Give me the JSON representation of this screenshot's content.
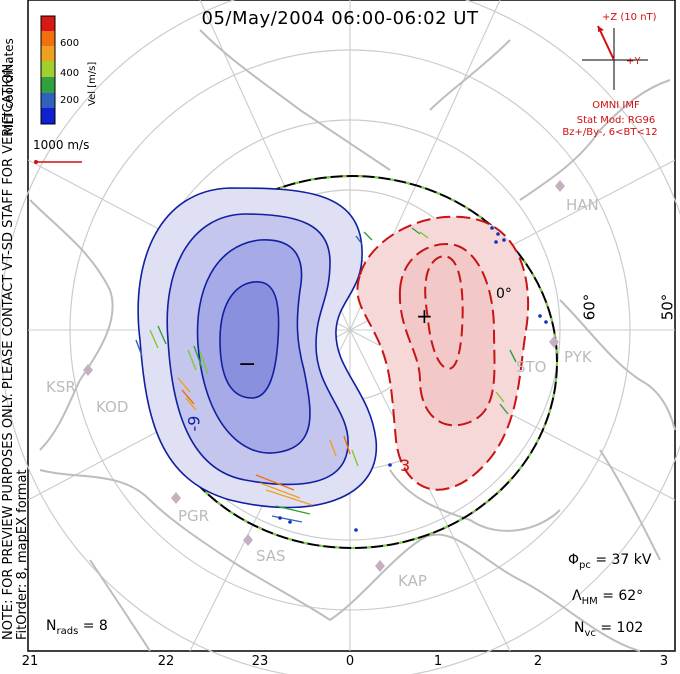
{
  "title": "05/May/2004 06:00-06:02 UT",
  "side_note_1": "NOTE: FOR PREVIEW PURPOSES ONLY. PLEASE CONTACT VT-SD STAFF FOR VERIFICATION.",
  "side_note_2": "FitOrder: 8, mapEX format",
  "coords_label": "MLT coordinates",
  "colorbar": {
    "label": "Vel [m/s]",
    "ticks": [
      "600",
      "400",
      "200"
    ],
    "colors": [
      "#d81818",
      "#f07010",
      "#f0a020",
      "#a0d030",
      "#30a040",
      "#3060c0",
      "#1020d0"
    ]
  },
  "velocity_scale": {
    "label": "1000 m/s",
    "color": "#d01010"
  },
  "imf": {
    "z_label": "+Z (10 nT)",
    "y_label": "+Y",
    "source": "OMNI IMF",
    "model": "Stat Mod: RG96",
    "condition": "Bz+/By-, 6<BT<12",
    "color": "#d01010"
  },
  "lat_labels": [
    "0°",
    "60°",
    "50°"
  ],
  "stations": [
    "HAN",
    "KSR",
    "KOD",
    "PGR",
    "SAS",
    "KAP",
    "STO",
    "PYK"
  ],
  "contour_labels": {
    "neg": "-9",
    "pos": "3"
  },
  "cell_markers": {
    "min": "−",
    "max": "+"
  },
  "stats": {
    "phi_pc": "= 37 kV",
    "lambda_hm": "= 62°",
    "n_vc": "= 102",
    "n_rads": "= 8"
  },
  "mlt_ticks": [
    "21",
    "22",
    "23",
    "0",
    "1",
    "2",
    "3"
  ]
}
